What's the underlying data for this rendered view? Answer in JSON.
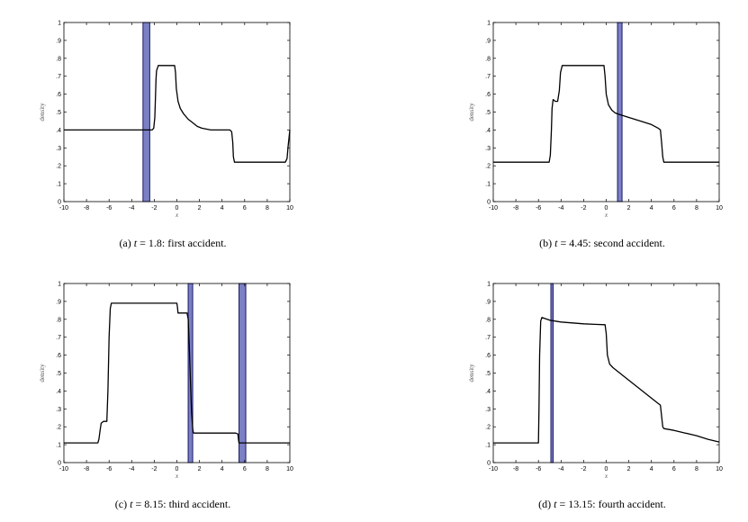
{
  "chart_data": [
    {
      "type": "line",
      "label": "(a)",
      "time_var": "t",
      "time_value": "1.8",
      "caption_text": "first accident.",
      "xlabel": "x",
      "ylabel": "density",
      "xlim": [
        -10,
        10
      ],
      "ylim": [
        0,
        1
      ],
      "xticks": [
        -10,
        -8,
        -6,
        -4,
        -2,
        0,
        2,
        4,
        6,
        8,
        10
      ],
      "yticks": [
        0,
        0.1,
        0.2,
        0.3,
        0.4,
        0.5,
        0.6,
        0.7,
        0.8,
        0.9,
        1
      ],
      "accident_bands": [
        [
          -3.0,
          -2.4
        ]
      ],
      "series": [
        {
          "name": "density",
          "x": [
            -10,
            -2.2,
            -2.05,
            -1.95,
            -1.9,
            -1.85,
            -1.8,
            -1.7,
            -1.65,
            -1.5,
            -1.45,
            -0.2,
            -0.12,
            -0.05,
            0.1,
            0.3,
            0.6,
            1.0,
            1.4,
            1.8,
            2.2,
            2.6,
            3.0,
            4.0,
            4.7,
            4.85,
            4.95,
            5.0,
            5.1,
            9.6,
            9.75,
            9.85,
            10.0
          ],
          "y": [
            0.4,
            0.4,
            0.41,
            0.47,
            0.58,
            0.68,
            0.73,
            0.75,
            0.76,
            0.76,
            0.76,
            0.76,
            0.72,
            0.63,
            0.56,
            0.52,
            0.49,
            0.46,
            0.44,
            0.42,
            0.41,
            0.405,
            0.4,
            0.4,
            0.4,
            0.39,
            0.33,
            0.25,
            0.22,
            0.22,
            0.24,
            0.31,
            0.4
          ]
        }
      ]
    },
    {
      "type": "line",
      "label": "(b)",
      "time_var": "t",
      "time_value": "4.45",
      "caption_text": "second accident.",
      "xlabel": "x",
      "ylabel": "density",
      "xlim": [
        -10,
        10
      ],
      "ylim": [
        0,
        1
      ],
      "xticks": [
        -10,
        -8,
        -6,
        -4,
        -2,
        0,
        2,
        4,
        6,
        8,
        10
      ],
      "yticks": [
        0,
        0.1,
        0.2,
        0.3,
        0.4,
        0.5,
        0.6,
        0.7,
        0.8,
        0.9,
        1
      ],
      "accident_bands": [
        [
          1.0,
          1.4
        ]
      ],
      "series": [
        {
          "name": "density",
          "x": [
            -10,
            -5.05,
            -4.95,
            -4.85,
            -4.8,
            -4.7,
            -4.5,
            -4.3,
            -4.15,
            -4.05,
            -3.9,
            -3.8,
            -0.2,
            -0.1,
            0.0,
            0.2,
            0.5,
            0.8,
            1.0,
            2.0,
            3.0,
            4.0,
            4.6,
            4.8,
            4.9,
            5.0,
            5.1,
            10.0
          ],
          "y": [
            0.22,
            0.22,
            0.26,
            0.4,
            0.52,
            0.57,
            0.56,
            0.56,
            0.62,
            0.72,
            0.76,
            0.76,
            0.76,
            0.7,
            0.6,
            0.54,
            0.51,
            0.495,
            0.49,
            0.47,
            0.45,
            0.43,
            0.41,
            0.4,
            0.33,
            0.25,
            0.22,
            0.22
          ]
        }
      ]
    },
    {
      "type": "line",
      "label": "(c)",
      "time_var": "t",
      "time_value": "8.15",
      "caption_text": "third accident.",
      "xlabel": "x",
      "ylabel": "density",
      "xlim": [
        -10,
        10
      ],
      "ylim": [
        0,
        1
      ],
      "xticks": [
        -10,
        -8,
        -6,
        -4,
        -2,
        0,
        2,
        4,
        6,
        8,
        10
      ],
      "yticks": [
        0,
        0.1,
        0.2,
        0.3,
        0.4,
        0.5,
        0.6,
        0.7,
        0.8,
        0.9,
        1
      ],
      "accident_bands": [
        [
          1.0,
          1.4
        ],
        [
          5.5,
          6.1
        ]
      ],
      "series": [
        {
          "name": "density",
          "x": [
            -10,
            -7.0,
            -6.9,
            -6.8,
            -6.7,
            -6.5,
            -6.2,
            -6.1,
            -6.0,
            -5.9,
            -5.8,
            0.0,
            0.05,
            0.1,
            0.9,
            1.0,
            1.1,
            1.2,
            1.3,
            1.4,
            1.45,
            1.5,
            5.2,
            5.4,
            5.45,
            5.5,
            10.0
          ],
          "y": [
            0.11,
            0.11,
            0.13,
            0.18,
            0.22,
            0.23,
            0.23,
            0.4,
            0.7,
            0.86,
            0.89,
            0.89,
            0.87,
            0.835,
            0.835,
            0.8,
            0.65,
            0.45,
            0.28,
            0.19,
            0.17,
            0.165,
            0.165,
            0.16,
            0.13,
            0.11,
            0.11
          ]
        }
      ]
    },
    {
      "type": "line",
      "label": "(d)",
      "time_var": "t",
      "time_value": "13.15",
      "caption_text": "fourth accident.",
      "xlabel": "x",
      "ylabel": "density",
      "xlim": [
        -10,
        10
      ],
      "ylim": [
        0,
        1
      ],
      "xticks": [
        -10,
        -8,
        -6,
        -4,
        -2,
        0,
        2,
        4,
        6,
        8,
        10
      ],
      "yticks": [
        0,
        0.1,
        0.2,
        0.3,
        0.4,
        0.5,
        0.6,
        0.7,
        0.8,
        0.9,
        1
      ],
      "accident_bands": [
        [
          -4.9,
          -4.7
        ]
      ],
      "series": [
        {
          "name": "density",
          "x": [
            -10,
            -6.0,
            -5.95,
            -5.9,
            -5.8,
            -5.7,
            -5.0,
            -4.0,
            -3.0,
            -2.0,
            -1.0,
            -0.1,
            0.0,
            0.1,
            0.3,
            0.6,
            1.0,
            2.0,
            3.0,
            4.0,
            4.8,
            4.9,
            5.0,
            5.1,
            6.0,
            7.0,
            8.0,
            9.0,
            10.0
          ],
          "y": [
            0.11,
            0.11,
            0.3,
            0.6,
            0.79,
            0.81,
            0.795,
            0.785,
            0.78,
            0.775,
            0.772,
            0.77,
            0.72,
            0.6,
            0.55,
            0.53,
            0.51,
            0.46,
            0.41,
            0.36,
            0.32,
            0.26,
            0.2,
            0.19,
            0.18,
            0.165,
            0.15,
            0.13,
            0.115
          ]
        }
      ]
    }
  ]
}
